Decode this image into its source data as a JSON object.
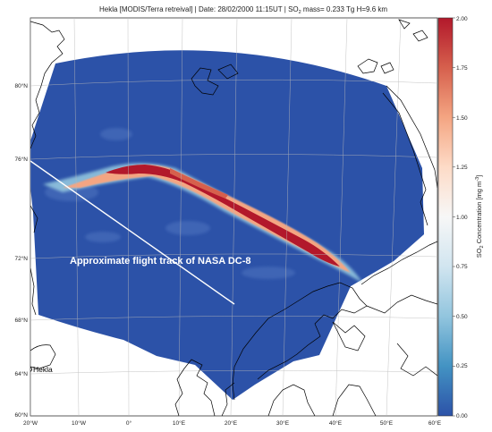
{
  "header": {
    "source": "Hekla [MODIS/Terra retreival]",
    "date": "Date: 28/02/2000  11:15UT",
    "mass_prefix": "SO",
    "mass_sub": "2",
    "mass_suffix": " mass= 0.233 Tg  H=9.6 km"
  },
  "annotations": {
    "flight_track": "Approximate flight track of NASA DC-8",
    "volcano": "Hekla"
  },
  "lat_labels": [
    "80°N",
    "76°N",
    "72°N",
    "68°N",
    "64°N",
    "60°N"
  ],
  "lon_labels": [
    "20°W",
    "10°W",
    "0°",
    "10°E",
    "20°E",
    "30°E",
    "40°E",
    "50°E",
    "60°E"
  ],
  "colorbar": {
    "ticks": [
      "2.00",
      "1.75",
      "1.50",
      "1.25",
      "1.00",
      "0.75",
      "0.50",
      "0.25",
      "0.00"
    ],
    "label_prefix": "SO",
    "label_sub": "2",
    "label_mid": " Concentration [mg m",
    "label_sup": "-3",
    "label_suffix": "]",
    "colors": [
      "#b2182b",
      "#d6604d",
      "#f4a582",
      "#fddbc7",
      "#f7f7f7",
      "#d1e5f0",
      "#92c5de",
      "#4393c3",
      "#2c52a8"
    ]
  },
  "colors": {
    "field": "#2c52a8",
    "plume_core": "#b2182b",
    "plume_edge": "#f4a582",
    "coast": "#000000"
  }
}
